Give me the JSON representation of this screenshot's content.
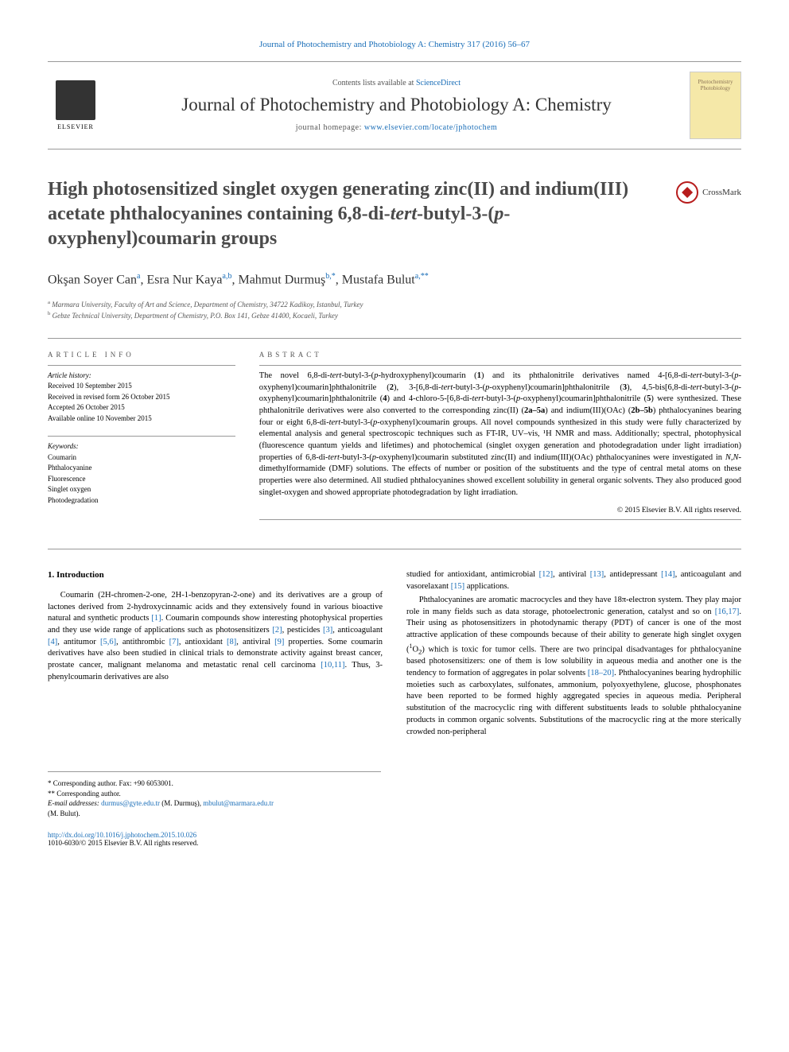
{
  "header": {
    "journal_citation": "Journal of Photochemistry and Photobiology A: Chemistry 317 (2016) 56–67",
    "contents_prefix": "Contents lists available at ",
    "contents_link": "ScienceDirect",
    "journal_name": "Journal of Photochemistry and Photobiology A: Chemistry",
    "homepage_prefix": "journal homepage: ",
    "homepage_url": "www.elsevier.com/locate/jphotochem",
    "publisher": "ELSEVIER",
    "cover_text1": "Photochemistry",
    "cover_text2": "Photobiology"
  },
  "crossmark": "CrossMark",
  "title": "High photosensitized singlet oxygen generating zinc(II) and indium(III) acetate phthalocyanines containing 6,8-di-tert-butyl-3-(p-oxyphenyl)coumarin groups",
  "authors_html": "Okşan Soyer Can<sup>a</sup>, Esra Nur Kaya<sup>a,b</sup>, Mahmut Durmuş<sup>b,*</sup>, Mustafa Bulut<sup>a,**</sup>",
  "affiliations": {
    "a": "Marmara University, Faculty of Art and Science, Department of Chemistry, 34722 Kadikoy, Istanbul, Turkey",
    "b": "Gebze Technical University, Department of Chemistry, P.O. Box 141, Gebze 41400, Kocaeli, Turkey"
  },
  "article_info": {
    "heading": "ARTICLE INFO",
    "history_label": "Article history:",
    "received": "Received 10 September 2015",
    "revised": "Received in revised form 26 October 2015",
    "accepted": "Accepted 26 October 2015",
    "online": "Available online 10 November 2015",
    "keywords_label": "Keywords:",
    "keywords": [
      "Coumarin",
      "Phthalocyanine",
      "Fluorescence",
      "Singlet oxygen",
      "Photodegradation"
    ]
  },
  "abstract": {
    "heading": "ABSTRACT",
    "text": "The novel 6,8-di-tert-butyl-3-(p-hydroxyphenyl)coumarin (1) and its phthalonitrile derivatives named 4-[6,8-di-tert-butyl-3-(p-oxyphenyl)coumarin]phthalonitrile (2), 3-[6,8-di-tert-butyl-3-(p-oxyphenyl)coumarin]phthalonitrile (3), 4,5-bis[6,8-di-tert-butyl-3-(p-oxyphenyl)coumarin]phthalonitrile (4) and 4-chloro-5-[6,8-di-tert-butyl-3-(p-oxyphenyl)coumarin]phthalonitrile (5) were synthesized. These phthalonitrile derivatives were also converted to the corresponding zinc(II) (2a–5a) and indium(III)(OAc) (2b–5b) phthalocyanines bearing four or eight 6,8-di-tert-butyl-3-(p-oxyphenyl)coumarin groups. All novel compounds synthesized in this study were fully characterized by elemental analysis and general spectroscopic techniques such as FT-IR, UV–vis, ¹H NMR and mass. Additionally; spectral, photophysical (fluorescence quantum yields and lifetimes) and photochemical (singlet oxygen generation and photodegradation under light irradiation) properties of 6,8-di-tert-butyl-3-(p-oxyphenyl)coumarin substituted zinc(II) and indium(III)(OAc) phthalocyanines were investigated in N,N-dimethylformamide (DMF) solutions. The effects of number or position of the substituents and the type of central metal atoms on these properties were also determined. All studied phthalocyanines showed excellent solubility in general organic solvents. They also produced good singlet-oxygen and showed appropriate photodegradation by light irradiation.",
    "copyright": "© 2015 Elsevier B.V. All rights reserved."
  },
  "body": {
    "section_heading": "1. Introduction",
    "col1_p1": "Coumarin (2H-chromen-2-one, 2H-1-benzopyran-2-one) and its derivatives are a group of lactones derived from 2-hydroxycinnamic acids and they extensively found in various bioactive natural and synthetic products [1]. Coumarin compounds show interesting photophysical properties and they use wide range of applications such as photosensitizers [2], pesticides [3], anticoagulant [4], antitumor [5,6], antithrombic [7], antioxidant [8], antiviral [9] properties. Some coumarin derivatives have also been studied in clinical trials to demonstrate activity against breast cancer, prostate cancer, malignant melanoma and metastatic renal cell carcinoma [10,11]. Thus, 3-phenylcoumarin derivatives are also",
    "col2_p0": "studied for antioxidant, antimicrobial [12], antiviral [13], antidepressant [14], anticoagulant and vasorelaxant [15] applications.",
    "col2_p1": "Phthalocyanines are aromatic macrocycles and they have 18π-electron system. They play major role in many fields such as data storage, photoelectronic generation, catalyst and so on [16,17]. Their using as photosensitizers in photodynamic therapy (PDT) of cancer is one of the most attractive application of these compounds because of their ability to generate high singlet oxygen (¹O₂) which is toxic for tumor cells. There are two principal disadvantages for phthalocyanine based photosensitizers: one of them is low solubility in aqueous media and another one is the tendency to formation of aggregates in polar solvents [18–20]. Phthalocyanines bearing hydrophilic moieties such as carboxylates, sulfonates, ammonium, polyoxyethylene, glucose, phosphonates have been reported to be formed highly aggregated species in aqueous media. Peripheral substitution of the macrocyclic ring with different substituents leads to soluble phthalocyanine products in common organic solvents. Substitutions of the macrocyclic ring at the more sterically crowded non-peripheral"
  },
  "footnotes": {
    "corr1": "* Corresponding author. Fax: +90 6053001.",
    "corr2": "** Corresponding author.",
    "email_label": "E-mail addresses: ",
    "email1": "durmus@gyte.edu.tr",
    "email1_name": " (M. Durmuş), ",
    "email2": "mbulut@marmara.edu.tr",
    "email2_name": " (M. Bulut)."
  },
  "doi": {
    "url": "http://dx.doi.org/10.1016/j.jphotochem.2015.10.026",
    "issn_line": "1010-6030/© 2015 Elsevier B.V. All rights reserved."
  },
  "colors": {
    "link": "#1a6eb8",
    "text": "#000000",
    "heading_gray": "#555555",
    "title_gray": "#4a4a4a",
    "cover_bg": "#f5e8a8",
    "cover_text": "#8b7355",
    "crossmark_red": "#b71c1c"
  }
}
